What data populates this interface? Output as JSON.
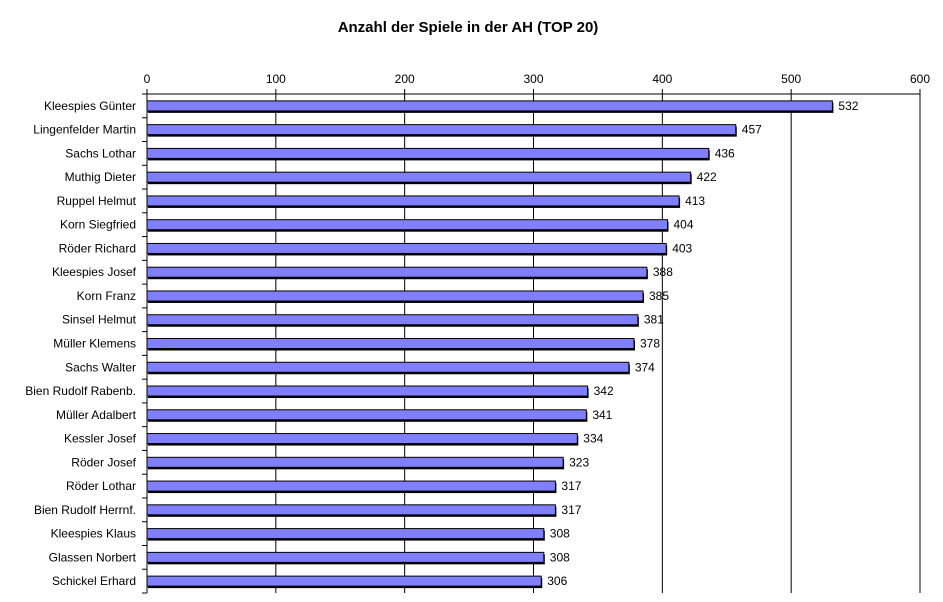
{
  "chart_data": {
    "type": "bar",
    "orientation": "horizontal",
    "title": "Anzahl der Spiele in der AH (TOP 20)",
    "xlabel": "",
    "ylabel": "",
    "xlim": [
      0,
      600
    ],
    "x_ticks": [
      0,
      100,
      200,
      300,
      400,
      500,
      600
    ],
    "axis_position": "top",
    "grid": true,
    "bar_color": "#8080ff",
    "categories": [
      "Kleespies Günter",
      "Lingenfelder Martin",
      "Sachs Lothar",
      "Muthig Dieter",
      "Ruppel Helmut",
      "Korn Siegfried",
      "Röder Richard",
      "Kleespies Josef",
      "Korn Franz",
      "Sinsel Helmut",
      "Müller Klemens",
      "Sachs Walter",
      "Bien Rudolf Rabenb.",
      "Müller Adalbert",
      "Kessler Josef",
      "Röder Josef",
      "Röder Lothar",
      "Bien Rudolf Herrnf.",
      "Kleespies Klaus",
      "Glassen Norbert",
      "Schickel Erhard"
    ],
    "values": [
      532,
      457,
      436,
      422,
      413,
      404,
      403,
      388,
      385,
      381,
      378,
      374,
      342,
      341,
      334,
      323,
      317,
      317,
      308,
      308,
      306
    ]
  }
}
